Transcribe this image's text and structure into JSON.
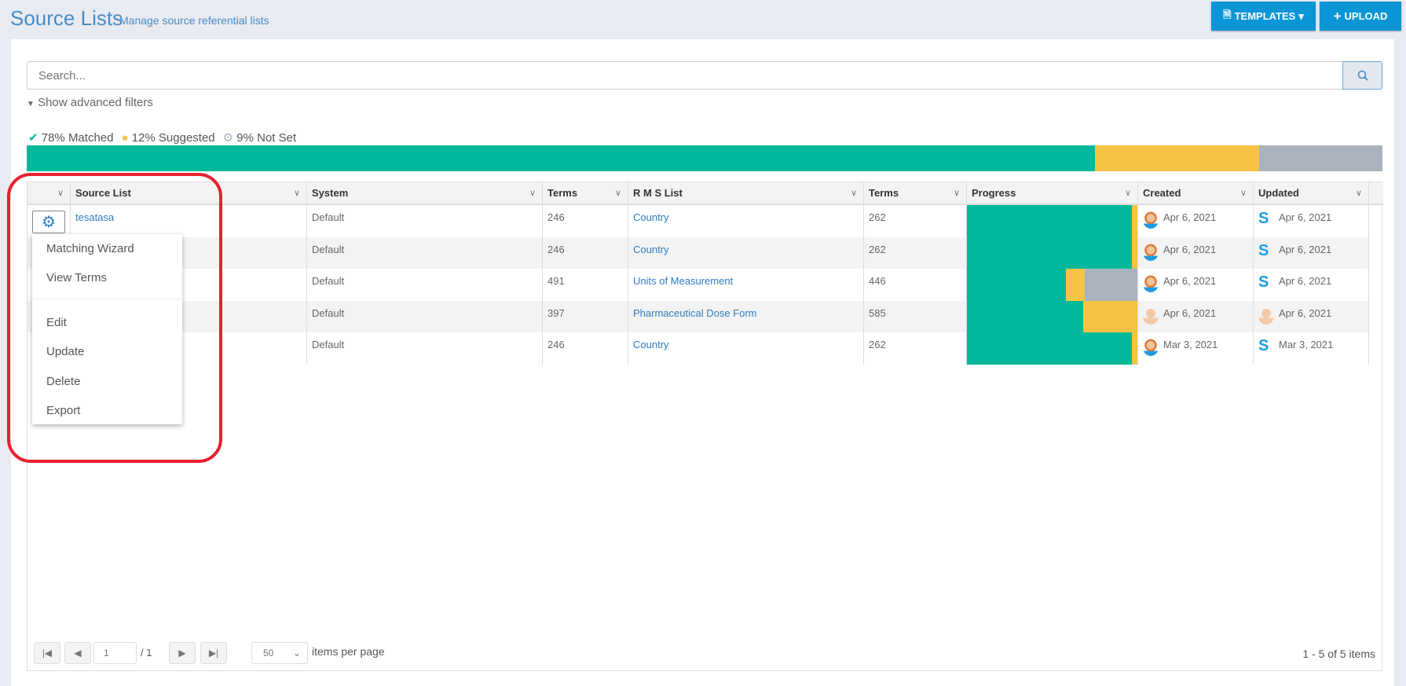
{
  "header": {
    "title": "Source Lists",
    "subtitle": "Manage source referential lists",
    "templates_label": "TEMPLATES",
    "upload_label": "UPLOAD"
  },
  "search": {
    "placeholder": "Search...",
    "advanced_filters": "Show advanced filters"
  },
  "summary": {
    "matched": "78% Matched",
    "suggested": "12% Suggested",
    "not_set": "9% Not Set",
    "matched_pct": 78,
    "suggested_pct": 12,
    "not_set_pct": 9
  },
  "colors": {
    "matched": "#00b99a",
    "suggested": "#f6c344",
    "not_set": "#aab3bd",
    "accent": "#0a96d6",
    "highlight": "#e8202e"
  },
  "columns": [
    "Source List",
    "System",
    "Terms",
    "R M S List",
    "Terms",
    "Progress",
    "Created",
    "Updated"
  ],
  "rows": [
    {
      "source": "tesatasa",
      "system": "Default",
      "terms": "246",
      "rms": "Country",
      "rms_terms": "262",
      "progress": [
        97,
        3,
        0
      ],
      "created": "Apr 6, 2021",
      "updated": "Apr 6, 2021",
      "updated_icon": "sync-logo"
    },
    {
      "source": "",
      "system": "Default",
      "terms": "246",
      "rms": "Country",
      "rms_terms": "262",
      "progress": [
        97,
        3,
        0
      ],
      "created": "Apr 6, 2021",
      "updated": "Apr 6, 2021",
      "updated_icon": "sync-logo"
    },
    {
      "source": "",
      "system": "Default",
      "terms": "491",
      "rms": "Units of Measurement",
      "rms_terms": "446",
      "progress": [
        58,
        11,
        31
      ],
      "created": "Apr 6, 2021",
      "updated": "Apr 6, 2021",
      "updated_icon": "sync-logo"
    },
    {
      "source": "",
      "system": "Default",
      "terms": "397",
      "rms": "Pharmaceutical Dose Form",
      "rms_terms": "585",
      "progress": [
        68,
        32,
        0
      ],
      "created": "Apr 6, 2021",
      "updated": "Apr 6, 2021",
      "updated_icon": "user-avatar"
    },
    {
      "source": "",
      "system": "Default",
      "terms": "246",
      "rms": "Country",
      "rms_terms": "262",
      "progress": [
        97,
        3,
        0
      ],
      "created": "Mar 3, 2021",
      "updated": "Mar 3, 2021",
      "updated_icon": "sync-logo"
    }
  ],
  "menu": {
    "items": [
      "Matching Wizard",
      "View Terms",
      "Edit",
      "Update",
      "Delete",
      "Export"
    ]
  },
  "pager": {
    "page": "1",
    "of": "/ 1",
    "page_size": "50",
    "per_page_label": "items per page",
    "summary": "1 - 5 of 5 items"
  }
}
